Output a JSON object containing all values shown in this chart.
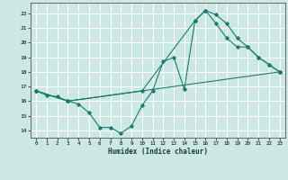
{
  "xlabel": "Humidex (Indice chaleur)",
  "bg_color": "#cce8e4",
  "grid_color": "#ffffff",
  "line_color": "#1a7a6e",
  "xlim": [
    -0.5,
    23.5
  ],
  "ylim": [
    13.5,
    22.7
  ],
  "xticks": [
    0,
    1,
    2,
    3,
    4,
    5,
    6,
    7,
    8,
    9,
    10,
    11,
    12,
    13,
    14,
    15,
    16,
    17,
    18,
    19,
    20,
    21,
    22,
    23
  ],
  "yticks": [
    14,
    15,
    16,
    17,
    18,
    19,
    20,
    21,
    22
  ],
  "line1_x": [
    0,
    1,
    2,
    3,
    4,
    5,
    6,
    7,
    8,
    9,
    10,
    11,
    12,
    13,
    14,
    15,
    16,
    17,
    18,
    19,
    20,
    21,
    22,
    23
  ],
  "line1_y": [
    16.7,
    16.4,
    16.3,
    16.0,
    15.8,
    15.2,
    14.2,
    14.2,
    13.8,
    14.3,
    15.7,
    16.7,
    18.7,
    19.0,
    16.8,
    21.5,
    22.2,
    21.9,
    21.3,
    20.3,
    19.7,
    19.0,
    18.5,
    18.0
  ],
  "line2_x": [
    0,
    3,
    10,
    15,
    16,
    17,
    18,
    19,
    20,
    21,
    22,
    23
  ],
  "line2_y": [
    16.7,
    16.0,
    16.7,
    21.5,
    22.2,
    21.3,
    20.3,
    19.7,
    19.7,
    19.0,
    18.5,
    18.0
  ],
  "line3_x": [
    0,
    3,
    23
  ],
  "line3_y": [
    16.7,
    16.0,
    18.0
  ]
}
